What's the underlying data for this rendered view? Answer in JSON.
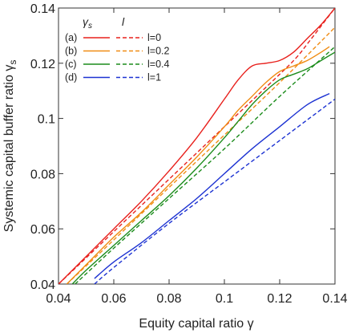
{
  "chart_data": {
    "type": "line",
    "xlabel": "Equity capital ratio  γ",
    "ylabel": "Systemic capital buffer ratio  γ",
    "ylabel_sub": "s",
    "xlim": [
      0.04,
      0.14
    ],
    "ylim": [
      0.04,
      0.14
    ],
    "x_ticks": [
      0.04,
      0.06,
      0.08,
      0.1,
      0.12,
      0.14
    ],
    "y_ticks": [
      0.04,
      0.06,
      0.08,
      0.1,
      0.12,
      0.14
    ],
    "x_tick_labels": [
      "0.04",
      "0.06",
      "0.08",
      "0.1",
      "0.12",
      "0.14"
    ],
    "y_tick_labels": [
      "0.04",
      "0.06",
      "0.08",
      "0.1",
      "0.12",
      "0.14"
    ],
    "grid": false,
    "legend": {
      "placement": "top-left",
      "head_solid": "γ",
      "head_solid_sub": "s",
      "head_dashed": "l",
      "rows": [
        {
          "tag": "(a)",
          "label": "l=0"
        },
        {
          "tag": "(b)",
          "label": "l=0.2"
        },
        {
          "tag": "(c)",
          "label": "l=0.4"
        },
        {
          "tag": "(d)",
          "label": "l=1"
        }
      ]
    },
    "series": [
      {
        "tag": "(a)",
        "style": "solid",
        "color": "#e8201c",
        "x": [
          0.04,
          0.05,
          0.06,
          0.07,
          0.08,
          0.09,
          0.1,
          0.105,
          0.11,
          0.115,
          0.12,
          0.125,
          0.13,
          0.135,
          0.14
        ],
        "y": [
          0.04,
          0.05,
          0.06,
          0.07,
          0.081,
          0.093,
          0.107,
          0.114,
          0.119,
          0.12,
          0.121,
          0.124,
          0.129,
          0.134,
          0.14
        ]
      },
      {
        "tag": "(a)",
        "style": "dashed",
        "color": "#e8201c",
        "x": [
          0.04,
          0.06,
          0.08,
          0.1,
          0.12,
          0.126,
          0.13,
          0.14
        ],
        "y": [
          0.04,
          0.059,
          0.078,
          0.097,
          0.116,
          0.122,
          0.127,
          0.14
        ]
      },
      {
        "tag": "(b)",
        "style": "solid",
        "color": "#f08c14",
        "x": [
          0.043,
          0.05,
          0.06,
          0.07,
          0.08,
          0.09,
          0.1,
          0.105,
          0.11,
          0.115,
          0.12,
          0.125,
          0.13,
          0.135,
          0.138
        ],
        "y": [
          0.04,
          0.047,
          0.057,
          0.066,
          0.076,
          0.086,
          0.097,
          0.103,
          0.108,
          0.113,
          0.117,
          0.119,
          0.121,
          0.124,
          0.126
        ]
      },
      {
        "tag": "(b)",
        "style": "dashed",
        "color": "#f08c14",
        "x": [
          0.043,
          0.06,
          0.08,
          0.1,
          0.12,
          0.14
        ],
        "y": [
          0.04,
          0.056,
          0.075,
          0.094,
          0.113,
          0.133
        ]
      },
      {
        "tag": "(c)",
        "style": "solid",
        "color": "#1c8c1c",
        "x": [
          0.045,
          0.05,
          0.06,
          0.07,
          0.08,
          0.09,
          0.1,
          0.105,
          0.11,
          0.115,
          0.12,
          0.125,
          0.13,
          0.135,
          0.14
        ],
        "y": [
          0.04,
          0.045,
          0.054,
          0.063,
          0.072,
          0.082,
          0.093,
          0.099,
          0.105,
          0.11,
          0.114,
          0.116,
          0.118,
          0.121,
          0.124
        ]
      },
      {
        "tag": "(c)",
        "style": "dashed",
        "color": "#1c8c1c",
        "x": [
          0.046,
          0.06,
          0.08,
          0.1,
          0.12,
          0.14
        ],
        "y": [
          0.04,
          0.053,
          0.071,
          0.089,
          0.108,
          0.126
        ]
      },
      {
        "tag": "(d)",
        "style": "solid",
        "color": "#1c32d2",
        "x": [
          0.053,
          0.06,
          0.07,
          0.08,
          0.09,
          0.1,
          0.11,
          0.12,
          0.13,
          0.138
        ],
        "y": [
          0.042,
          0.048,
          0.055,
          0.063,
          0.071,
          0.08,
          0.089,
          0.097,
          0.105,
          0.109
        ]
      },
      {
        "tag": "(d)",
        "style": "dashed",
        "color": "#1c32d2",
        "x": [
          0.053,
          0.06,
          0.08,
          0.1,
          0.12,
          0.14
        ],
        "y": [
          0.04,
          0.046,
          0.062,
          0.077,
          0.092,
          0.107
        ]
      }
    ]
  }
}
